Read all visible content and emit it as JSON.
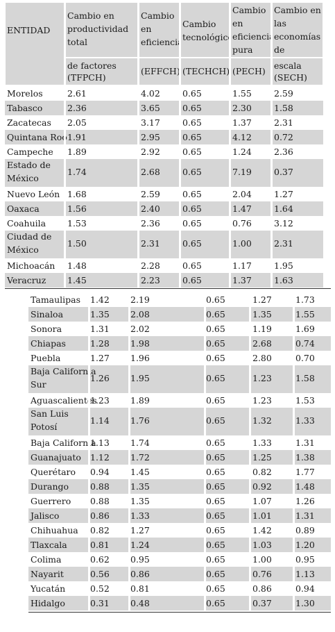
{
  "header": {
    "entidad": "ENTIDAD",
    "tfp_title": [
      "Cambio en",
      "productividad",
      "total"
    ],
    "tfp_sub": [
      "de factores",
      "(TFPCH)"
    ],
    "eff_title": [
      "Cambio",
      "en",
      "eficiencia"
    ],
    "eff_sub": "(EFFCH)",
    "tech_title": [
      "Cambio",
      "tecnológico"
    ],
    "tech_sub": "(TECHCH)",
    "pure_title": [
      "Cambio",
      "en",
      "eficiencia",
      "pura"
    ],
    "pure_sub": "(PECH)",
    "scale_title": [
      "Cambio en",
      "las",
      "economías",
      "de"
    ],
    "scale_sub": [
      "escala",
      "(SECH)"
    ]
  },
  "table1": [
    {
      "name": [
        "Morelos"
      ],
      "tfp": "2.61",
      "eff": "4.02",
      "tech": "0.65",
      "pure": "1.55",
      "scale": "2.59"
    },
    {
      "name": [
        "Tabasco"
      ],
      "tfp": "2.36",
      "eff": "3.65",
      "tech": "0.65",
      "pure": "2.30",
      "scale": "1.58"
    },
    {
      "name": [
        "Zacatecas"
      ],
      "tfp": "2.05",
      "eff": "3.17",
      "tech": "0.65",
      "pure": "1.37",
      "scale": "2.31"
    },
    {
      "name": [
        "Quintana Roo"
      ],
      "tfp": "1.91",
      "eff": "2.95",
      "tech": "0.65",
      "pure": "4.12",
      "scale": "0.72"
    },
    {
      "name": [
        "Campeche"
      ],
      "tfp": "1.89",
      "eff": "2.92",
      "tech": "0.65",
      "pure": "1.24",
      "scale": "2.36"
    },
    {
      "name": [
        "Estado de",
        "México"
      ],
      "tfp": "1.74",
      "eff": "2.68",
      "tech": "0.65",
      "pure": "7.19",
      "scale": "0.37"
    },
    {
      "name": [
        "Nuevo León"
      ],
      "tfp": "1.68",
      "eff": "2.59",
      "tech": "0.65",
      "pure": "2.04",
      "scale": "1.27"
    },
    {
      "name": [
        "Oaxaca"
      ],
      "tfp": "1.56",
      "eff": "2.40",
      "tech": "0.65",
      "pure": "1.47",
      "scale": "1.64"
    },
    {
      "name": [
        "Coahuila"
      ],
      "tfp": "1.53",
      "eff": "2.36",
      "tech": "0.65",
      "pure": "0.76",
      "scale": "3.12"
    },
    {
      "name": [
        "Ciudad de",
        "México"
      ],
      "tfp": "1.50",
      "eff": "2.31",
      "tech": "0.65",
      "pure": "1.00",
      "scale": "2.31"
    },
    {
      "name": [
        "Michoacán"
      ],
      "tfp": "1.48",
      "eff": "2.28",
      "tech": "0.65",
      "pure": "1.17",
      "scale": "1.95"
    },
    {
      "name": [
        "Veracruz"
      ],
      "tfp": "1.45",
      "eff": "2.23",
      "tech": "0.65",
      "pure": "1.37",
      "scale": "1.63"
    }
  ],
  "table2": [
    {
      "name": [
        "Tamaulipas"
      ],
      "tfp": "1.42",
      "eff": "2.19",
      "tech": "0.65",
      "pure": "1.27",
      "scale": "1.73"
    },
    {
      "name": [
        "Sinaloa"
      ],
      "tfp": "1.35",
      "eff": "2.08",
      "tech": "0.65",
      "pure": "1.35",
      "scale": "1.55"
    },
    {
      "name": [
        "Sonora"
      ],
      "tfp": "1.31",
      "eff": "2.02",
      "tech": "0.65",
      "pure": "1.19",
      "scale": "1.69"
    },
    {
      "name": [
        "Chiapas"
      ],
      "tfp": "1.28",
      "eff": "1.98",
      "tech": "0.65",
      "pure": "2.68",
      "scale": "0.74"
    },
    {
      "name": [
        "Puebla"
      ],
      "tfp": "1.27",
      "eff": "1.96",
      "tech": "0.65",
      "pure": "2.80",
      "scale": "0.70"
    },
    {
      "name": [
        "Baja California",
        "Sur"
      ],
      "tfp": "1.26",
      "eff": "1.95",
      "tech": "0.65",
      "pure": "1.23",
      "scale": "1.58"
    },
    {
      "name": [
        "Aguascalientes"
      ],
      "tfp": "1.23",
      "eff": "1.89",
      "tech": "0.65",
      "pure": "1.23",
      "scale": "1.53"
    },
    {
      "name": [
        "San Luis",
        "Potosí"
      ],
      "tfp": "1.14",
      "eff": "1.76",
      "tech": "0.65",
      "pure": "1.32",
      "scale": "1.33"
    },
    {
      "name": [
        "Baja California"
      ],
      "tfp": "1.13",
      "eff": "1.74",
      "tech": "0.65",
      "pure": "1.33",
      "scale": "1.31"
    },
    {
      "name": [
        "Guanajuato"
      ],
      "tfp": "1.12",
      "eff": "1.72",
      "tech": "0.65",
      "pure": "1.25",
      "scale": "1.38"
    },
    {
      "name": [
        "Querétaro"
      ],
      "tfp": "0.94",
      "eff": "1.45",
      "tech": "0.65",
      "pure": "0.82",
      "scale": "1.77"
    },
    {
      "name": [
        "Durango"
      ],
      "tfp": "0.88",
      "eff": "1.35",
      "tech": "0.65",
      "pure": "0.92",
      "scale": "1.48"
    },
    {
      "name": [
        "Guerrero"
      ],
      "tfp": "0.88",
      "eff": "1.35",
      "tech": "0.65",
      "pure": "1.07",
      "scale": "1.26"
    },
    {
      "name": [
        "Jalisco"
      ],
      "tfp": "0.86",
      "eff": "1.33",
      "tech": "0.65",
      "pure": "1.01",
      "scale": "1.31"
    },
    {
      "name": [
        "Chihuahua"
      ],
      "tfp": "0.82",
      "eff": "1.27",
      "tech": "0.65",
      "pure": "1.42",
      "scale": "0.89"
    },
    {
      "name": [
        "Tlaxcala"
      ],
      "tfp": "0.81",
      "eff": "1.24",
      "tech": "0.65",
      "pure": "1.03",
      "scale": "1.20"
    },
    {
      "name": [
        "Colima"
      ],
      "tfp": "0.62",
      "eff": "0.95",
      "tech": "0.65",
      "pure": "1.00",
      "scale": "0.95"
    },
    {
      "name": [
        "Nayarit"
      ],
      "tfp": "0.56",
      "eff": "0.86",
      "tech": "0.65",
      "pure": "0.76",
      "scale": "1.13"
    },
    {
      "name": [
        "Yucatán"
      ],
      "tfp": "0.52",
      "eff": "0.81",
      "tech": "0.65",
      "pure": "0.86",
      "scale": "0.94"
    },
    {
      "name": [
        "Hidalgo"
      ],
      "tfp": "0.31",
      "eff": "0.48",
      "tech": "0.65",
      "pure": "0.37",
      "scale": "1.30"
    }
  ],
  "colors": {
    "shade": "#d6d6d6",
    "text": "#1a1a1a",
    "rule": "#333333"
  }
}
